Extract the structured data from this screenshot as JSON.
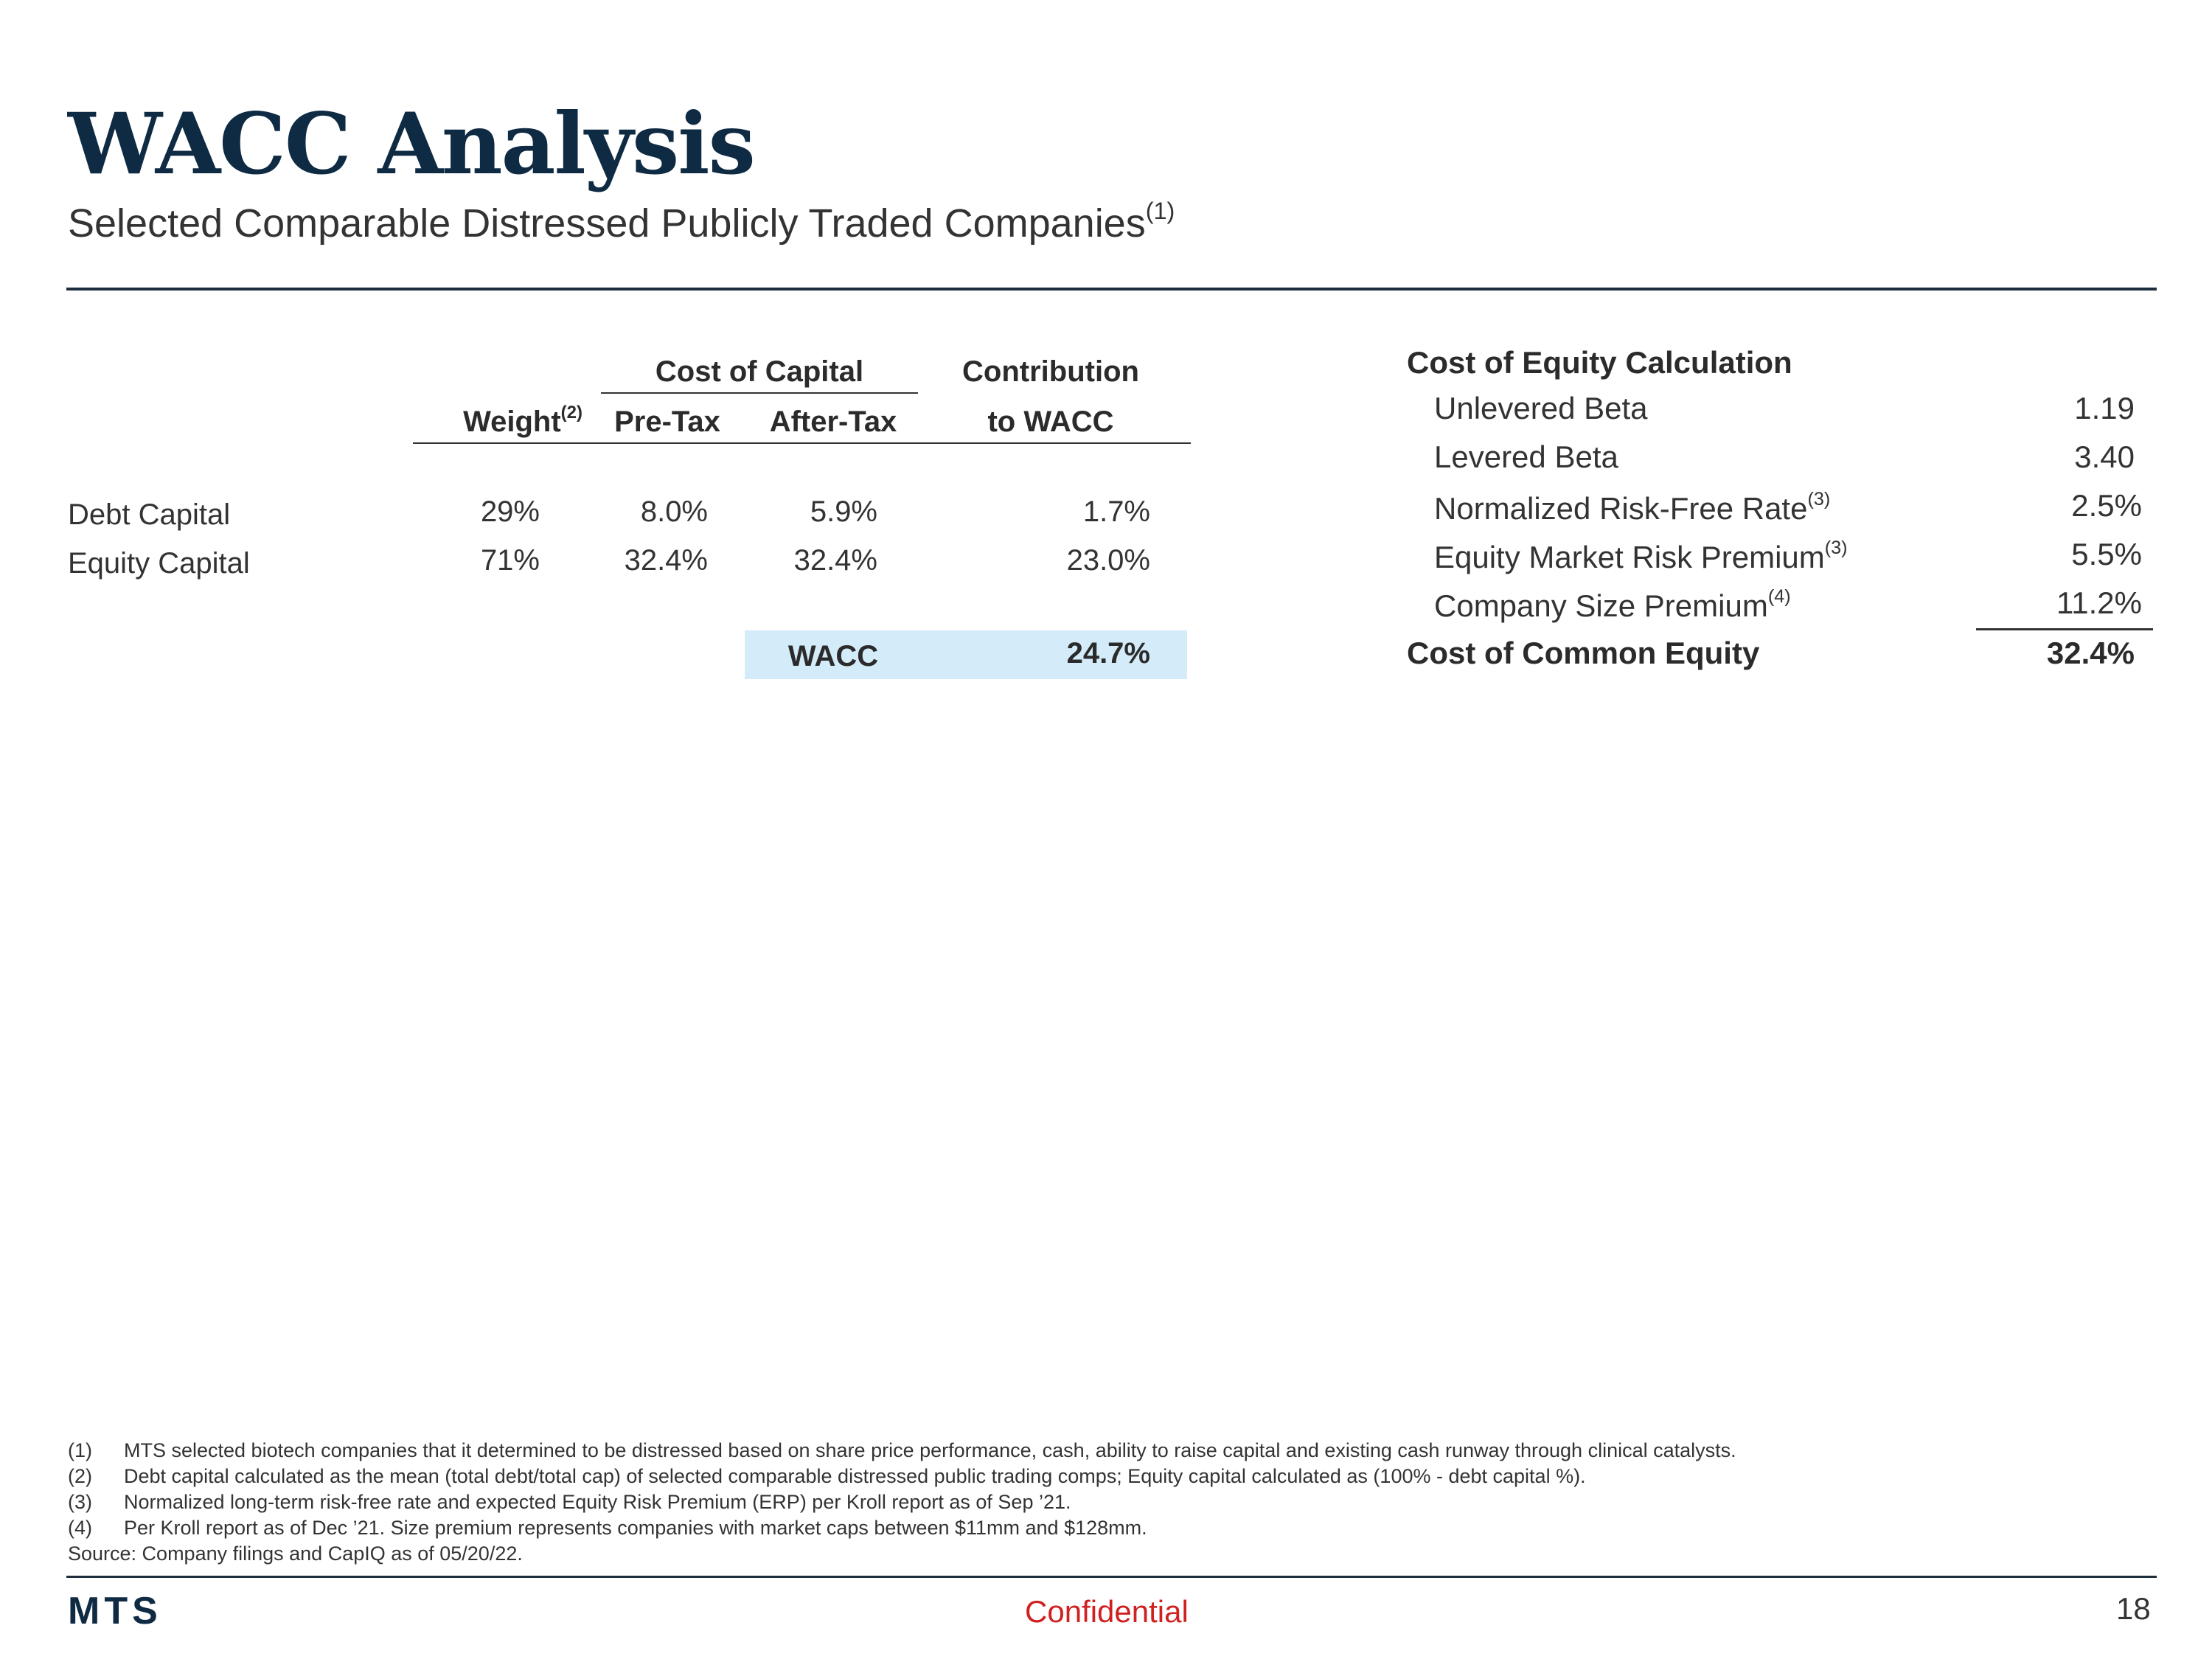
{
  "header": {
    "title": "WACC Analysis",
    "subtitle": "Selected Comparable Distressed Publicly Traded Companies",
    "subtitle_note": "(1)"
  },
  "wacc_table": {
    "group_header_cost": "Cost of Capital",
    "group_header_contribution": "Contribution",
    "col_weight": "Weight",
    "col_weight_note": "(2)",
    "col_pretax": "Pre-Tax",
    "col_aftertax": "After-Tax",
    "col_contribution": "to WACC",
    "rows": [
      {
        "label": "Debt Capital",
        "weight": "29%",
        "pretax": "8.0%",
        "aftertax": "5.9%",
        "contribution": "1.7%"
      },
      {
        "label": "Equity Capital",
        "weight": "71%",
        "pretax": "32.4%",
        "aftertax": "32.4%",
        "contribution": "23.0%"
      }
    ],
    "total_label": "WACC",
    "total_value": "24.7%"
  },
  "cost_of_equity": {
    "title": "Cost of Equity Calculation",
    "items": [
      {
        "label": "Unlevered Beta",
        "note": "",
        "value": "1.19"
      },
      {
        "label": "Levered Beta",
        "note": "",
        "value": "3.40"
      },
      {
        "label": "Normalized Risk-Free Rate",
        "note": "(3)",
        "value": "2.5%"
      },
      {
        "label": "Equity Market Risk Premium",
        "note": "(3)",
        "value": "5.5%"
      },
      {
        "label": "Company Size Premium",
        "note": "(4)",
        "value": "11.2%"
      }
    ],
    "total_label": "Cost of Common Equity",
    "total_value": "32.4%"
  },
  "footnotes": [
    {
      "num": "(1)",
      "text": "MTS selected biotech companies that it determined to be distressed based on share price performance, cash, ability to raise capital and existing cash runway through clinical catalysts."
    },
    {
      "num": "(2)",
      "text": "Debt capital calculated as the mean (total debt/total cap) of selected comparable distressed public trading comps; Equity capital calculated as (100% - debt capital %)."
    },
    {
      "num": "(3)",
      "text": "Normalized long-term risk-free rate and expected Equity Risk Premium (ERP) per Kroll report as of Sep ’21."
    },
    {
      "num": "(4)",
      "text": "Per Kroll report as of Dec ’21. Size premium represents companies with market caps between $11mm and $128mm."
    }
  ],
  "source": "Source: Company filings and CapIQ as of 05/20/22.",
  "footer": {
    "logo": "MTS",
    "confidential": "Confidential",
    "page_number": "18"
  }
}
